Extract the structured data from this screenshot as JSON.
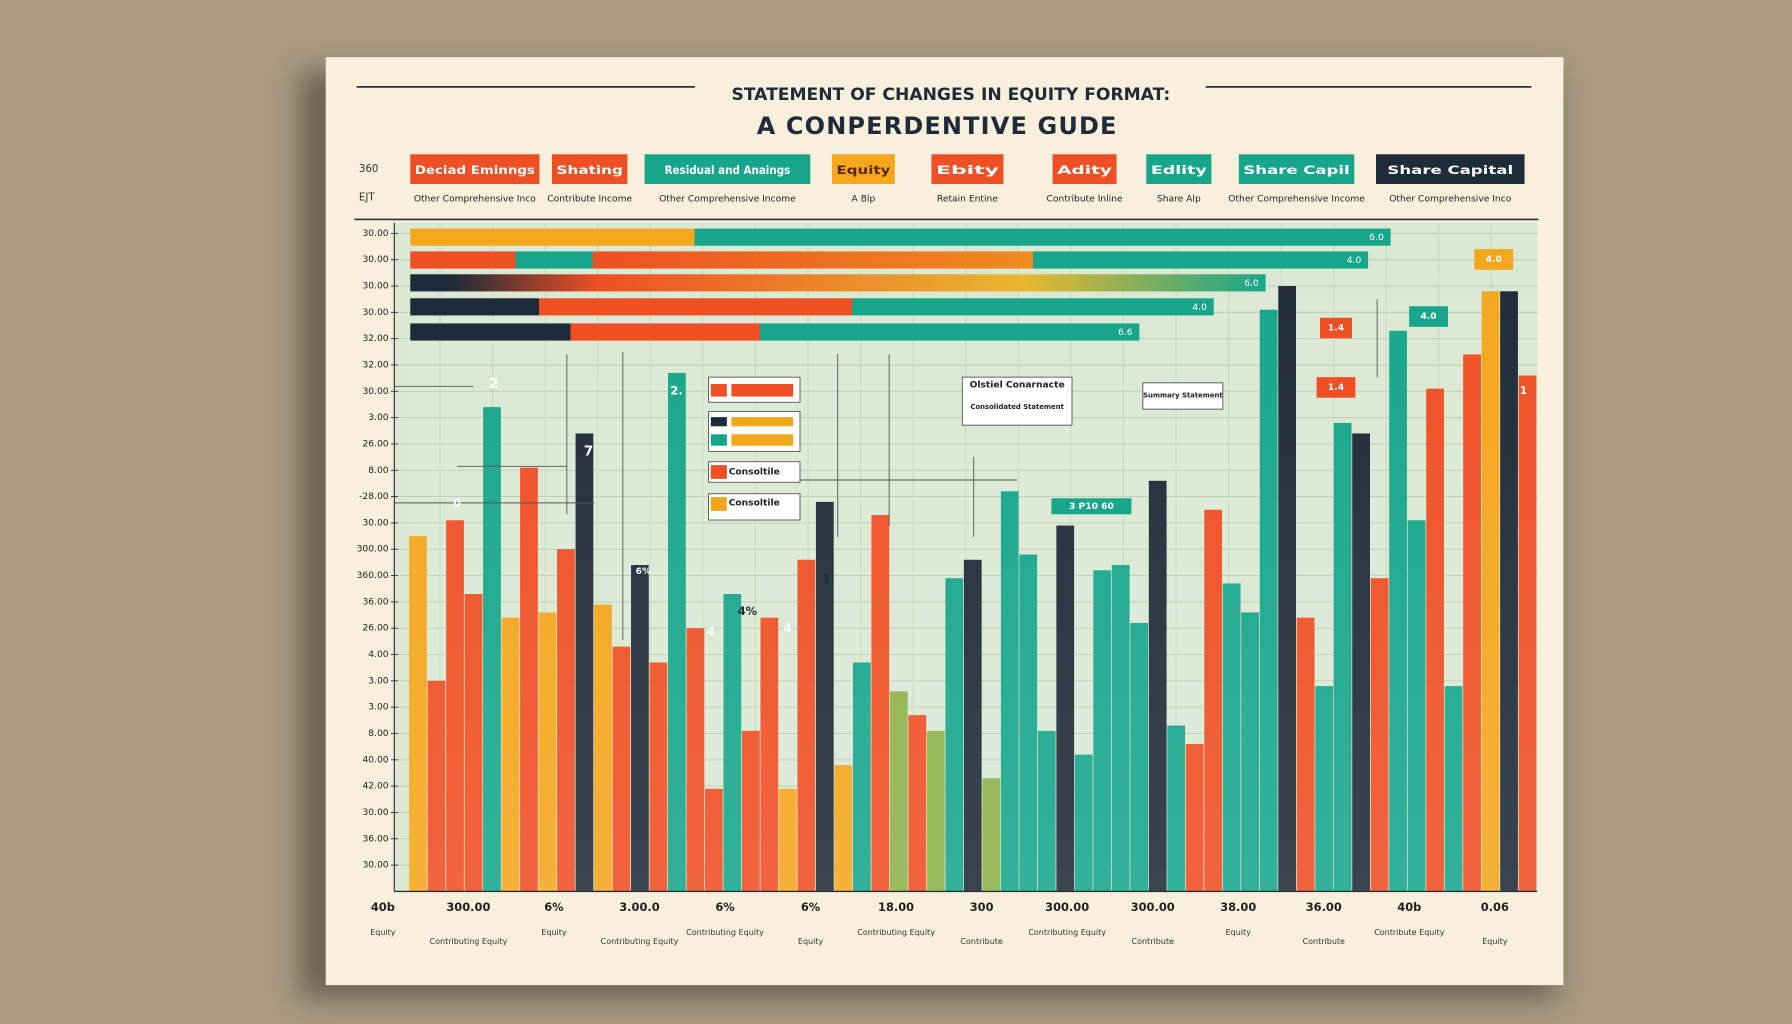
{
  "title": "STATEMENT OF CHANGES IN EQUITY FORMAT:",
  "subtitle": "A CONPERDENTIVE GUDE",
  "row_labels": [
    "360",
    "EJT"
  ],
  "legend": [
    {
      "name": "Deciad Eminngs",
      "color": "#ee4f24",
      "note": "Other Comprehensive Inco"
    },
    {
      "name": "Shating",
      "color": "#ee4f24",
      "note": "Contribute Income"
    },
    {
      "name": "Residual and Anaings",
      "color": "#17a68b",
      "note": "Other Comprehensive Income"
    },
    {
      "name": "Equity",
      "color": "#f4a61d",
      "note": "A Blp"
    },
    {
      "name": "Ebity",
      "color": "#ee4f24",
      "note": "Retain Entine"
    },
    {
      "name": "Adity",
      "color": "#ee4f24",
      "note": "Contribute Inline"
    },
    {
      "name": "Edlity",
      "color": "#17a68b",
      "note": "Share Alp"
    },
    {
      "name": "Share Capil",
      "color": "#17a68b",
      "note": "Other Comprehensive Income"
    },
    {
      "name": "Share Capital",
      "color": "#1e2b38",
      "note": "Other Comprehensive Inco"
    }
  ],
  "chart_data": [
    {
      "type": "hbar",
      "values": [
        87.0,
        85.0,
        75.9,
        71.3,
        64.7
      ],
      "xlim": [
        0,
        100
      ],
      "labels": [
        "6.0",
        "4.0",
        "6.0",
        "4.0",
        "6.6"
      ]
    },
    {
      "type": "bar",
      "values": [
        13.5,
        8.0,
        14.1,
        11.3,
        18.4,
        10.4,
        16.1,
        10.6,
        13.0,
        17.4,
        10.9,
        9.3,
        12.4,
        8.7,
        19.7,
        10.0,
        3.9,
        11.3,
        6.1,
        10.4,
        3.9,
        12.6,
        14.8,
        4.8,
        8.7,
        14.3,
        7.6,
        6.7,
        6.1,
        11.9,
        12.6,
        4.3,
        15.2,
        12.8,
        6.1,
        13.9,
        5.2,
        12.2,
        12.4,
        10.2,
        15.6,
        6.3,
        5.6,
        14.5,
        11.7,
        10.6,
        22.1,
        23.0,
        10.4,
        7.8,
        17.8,
        17.4,
        11.9,
        21.3,
        14.1,
        19.1,
        7.8,
        20.4,
        22.8,
        22.8,
        19.6
      ],
      "colors": [
        "#f4a61d",
        "#ee4f24",
        "#ee4f24",
        "#ee4f24",
        "#17a68b",
        "#f4a61d",
        "#ee4f24",
        "#f4a61d",
        "#ee4f24",
        "#1e2b38",
        "#f4a61d",
        "#ee4f24",
        "#1e2b38",
        "#ee4f24",
        "#17a68b",
        "#ee4f24",
        "#ee4f24",
        "#17a68b",
        "#ee4f24",
        "#ee4f24",
        "#f4a61d",
        "#ee4f24",
        "#1e2b38",
        "#f4a61d",
        "#17a68b",
        "#ee4f24",
        "#8fb24c",
        "#ee4f24",
        "#8fb24c",
        "#17a68b",
        "#1e2b38",
        "#8fb24c",
        "#17a68b",
        "#17a68b",
        "#17a68b",
        "#1e2b38",
        "#17a68b",
        "#17a68b",
        "#17a68b",
        "#17a68b",
        "#1e2b38",
        "#17a68b",
        "#ee4f24",
        "#ee4f24",
        "#17a68b",
        "#17a68b",
        "#17a68b",
        "#1e2b38",
        "#ee4f24",
        "#17a68b",
        "#17a68b",
        "#1e2b38",
        "#ee4f24",
        "#17a68b",
        "#17a68b",
        "#ee4f24",
        "#17a68b",
        "#ee4f24",
        "#f4a61d",
        "#1e2b38",
        "#ee4f24"
      ],
      "ylim": [
        0,
        25.4
      ],
      "yticks": [
        {
          "value": 25,
          "label": "30.00"
        },
        {
          "value": 24,
          "label": "30.00"
        },
        {
          "value": 23,
          "label": "30.00"
        },
        {
          "value": 22,
          "label": "30.00"
        },
        {
          "value": 21,
          "label": "32.00"
        },
        {
          "value": 20,
          "label": "32.00"
        },
        {
          "value": 19,
          "label": "30.00"
        },
        {
          "value": 18,
          "label": "3.00"
        },
        {
          "value": 17,
          "label": "26.00"
        },
        {
          "value": 16,
          "label": "8.00"
        },
        {
          "value": 15,
          "label": "-28.00"
        },
        {
          "value": 14,
          "label": "30.00"
        },
        {
          "value": 13,
          "label": "300.00"
        },
        {
          "value": 12,
          "label": "360.00"
        },
        {
          "value": 11,
          "label": "36.00"
        },
        {
          "value": 10,
          "label": "26.00"
        },
        {
          "value": 9,
          "label": "4.00"
        },
        {
          "value": 8,
          "label": "3.00"
        },
        {
          "value": 7,
          "label": "3.00"
        },
        {
          "value": 6,
          "label": "8.00"
        },
        {
          "value": 5,
          "label": "40.00"
        },
        {
          "value": 4,
          "label": "42.00"
        },
        {
          "value": 3,
          "label": "30.00"
        },
        {
          "value": 2,
          "label": "36.00"
        },
        {
          "value": 1,
          "label": "30.00"
        }
      ],
      "grid": true,
      "x_labels": [
        "40b",
        "300.00",
        "6%",
        "3.00.0",
        "6%",
        "6%",
        "18.00",
        "300",
        "300.00",
        "300.00",
        "38.00",
        "36.00",
        "40b",
        "0.06"
      ],
      "notes": [
        "Equity",
        "Contributing Equity",
        "Equity",
        "Contributing Equity",
        "Contributing Equity",
        "Equity",
        "Contributing Equity",
        "Contribute",
        "Contributing Equity",
        "Contribute",
        "Equity",
        "Contribute",
        "Contribute Equity",
        "Equity"
      ],
      "annotations": [
        "2",
        "7",
        "0",
        "6%",
        "2.",
        "4",
        "4%",
        "4",
        "1",
        "1.4",
        "4.0",
        "1.4",
        "4.0",
        "1",
        "Consoltile",
        "Consoltile",
        "Olstiel Conarnacte",
        "Consolidated Statement",
        "Summary Statement",
        "3 P10 60"
      ]
    }
  ]
}
